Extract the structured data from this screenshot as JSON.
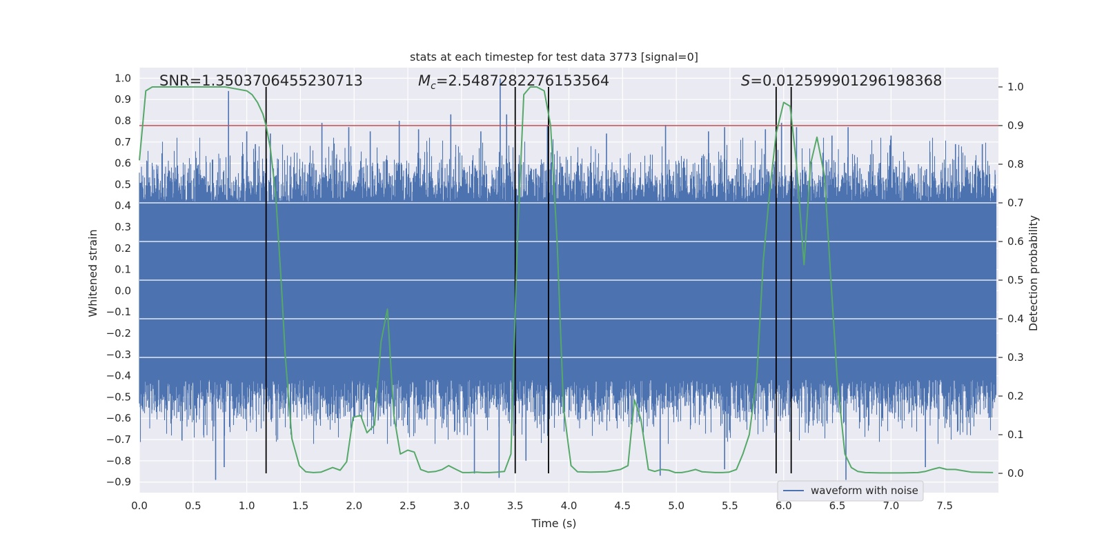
{
  "chart_data": {
    "type": "line",
    "title": "stats at each timestep for test data 3773 [signal=0]",
    "xlabel": "Time (s)",
    "ylabel_left": "Whitened strain",
    "ylabel_right": "Detection probability",
    "xlim": [
      0,
      8
    ],
    "ylim_left": [
      -0.95,
      1.05
    ],
    "ylim_right": [
      -0.05,
      1.05
    ],
    "x_ticks": [
      "0.0",
      "0.5",
      "1.0",
      "1.5",
      "2.0",
      "2.5",
      "3.0",
      "3.5",
      "4.0",
      "4.5",
      "5.0",
      "5.5",
      "6.0",
      "6.5",
      "7.0",
      "7.5"
    ],
    "y_left_ticks": [
      "−0.9",
      "−0.8",
      "−0.7",
      "−0.6",
      "−0.5",
      "−0.4",
      "−0.3",
      "−0.2",
      "−0.1",
      "0.0",
      "0.1",
      "0.2",
      "0.3",
      "0.4",
      "0.5",
      "0.6",
      "0.7",
      "0.8",
      "0.9",
      "1.0"
    ],
    "y_right_ticks": [
      "0.0",
      "0.1",
      "0.2",
      "0.3",
      "0.4",
      "0.5",
      "0.6",
      "0.7",
      "0.8",
      "0.9",
      "1.0"
    ],
    "grid": true,
    "legend": {
      "placement": "lower-right",
      "entries": [
        "waveform with noise"
      ]
    },
    "annotations": {
      "snr": "SNR=1.3503706455230713",
      "mc_symbol": "M",
      "mc_subscript": "c",
      "mc_value": "=2.5487282276153564",
      "s_symbol": "S",
      "s_value": "=0.012599901296198368"
    },
    "threshold": {
      "value": 0.9,
      "axis": "right",
      "color": "#c44e52"
    },
    "vertical_lines": [
      1.18,
      3.5,
      3.81,
      5.93,
      6.07
    ],
    "waveform": {
      "name": "waveform with noise",
      "color": "#4c72b0",
      "time_range": [
        0,
        7.98
      ],
      "envelope_upper": 0.42,
      "envelope_lower": -0.42,
      "spikes": [
        [
          0.83,
          0.94
        ],
        [
          0.71,
          -0.89
        ],
        [
          0.79,
          -0.83
        ],
        [
          1.0,
          0.75
        ],
        [
          1.08,
          0.69
        ],
        [
          1.22,
          0.74
        ],
        [
          1.7,
          0.79
        ],
        [
          1.95,
          0.77
        ],
        [
          2.15,
          0.75
        ],
        [
          2.42,
          0.8
        ],
        [
          2.6,
          0.76
        ],
        [
          2.9,
          0.83
        ],
        [
          3.18,
          0.75
        ],
        [
          3.36,
          1.0
        ],
        [
          3.42,
          0.83
        ],
        [
          3.35,
          -0.88
        ],
        [
          3.12,
          -0.86
        ],
        [
          3.8,
          0.78
        ],
        [
          4.35,
          0.74
        ],
        [
          4.9,
          0.78
        ],
        [
          5.3,
          0.75
        ],
        [
          5.45,
          0.77
        ],
        [
          5.83,
          0.76
        ],
        [
          5.98,
          0.79
        ],
        [
          6.12,
          0.77
        ],
        [
          6.45,
          0.73
        ],
        [
          6.6,
          0.77
        ],
        [
          6.58,
          -0.89
        ],
        [
          7.0,
          0.73
        ],
        [
          7.32,
          -0.83
        ],
        [
          7.6,
          0.69
        ],
        [
          7.85,
          0.69
        ],
        [
          4.85,
          -0.87
        ],
        [
          5.45,
          -0.84
        ],
        [
          3.6,
          -0.8
        ]
      ]
    },
    "detection_probability": {
      "color": "#55a868",
      "x": [
        0.0,
        0.03,
        0.06,
        0.12,
        0.2,
        0.4,
        0.6,
        0.8,
        0.9,
        1.0,
        1.05,
        1.1,
        1.15,
        1.18,
        1.22,
        1.27,
        1.32,
        1.36,
        1.42,
        1.49,
        1.55,
        1.62,
        1.69,
        1.8,
        1.87,
        1.93,
        1.99,
        2.06,
        2.12,
        2.19,
        2.25,
        2.31,
        2.37,
        2.43,
        2.5,
        2.56,
        2.62,
        2.69,
        2.76,
        2.82,
        2.88,
        2.95,
        3.01,
        3.07,
        3.14,
        3.2,
        3.26,
        3.33,
        3.4,
        3.46,
        3.52,
        3.58,
        3.64,
        3.7,
        3.77,
        3.83,
        3.89,
        3.95,
        4.02,
        4.08,
        4.2,
        4.35,
        4.48,
        4.55,
        4.61,
        4.67,
        4.74,
        4.8,
        4.86,
        4.93,
        4.99,
        5.05,
        5.11,
        5.18,
        5.24,
        5.36,
        5.43,
        5.49,
        5.56,
        5.62,
        5.68,
        5.75,
        5.81,
        5.87,
        5.93,
        6.0,
        6.06,
        6.12,
        6.19,
        6.25,
        6.31,
        6.38,
        6.44,
        6.5,
        6.57,
        6.63,
        6.69,
        6.76,
        6.9,
        7.1,
        7.25,
        7.32,
        7.38,
        7.45,
        7.52,
        7.6,
        7.75,
        7.95
      ],
      "y": [
        0.81,
        0.9,
        0.99,
        1.0,
        1.0,
        1.0,
        1.0,
        1.0,
        0.995,
        0.99,
        0.98,
        0.96,
        0.93,
        0.9,
        0.84,
        0.72,
        0.5,
        0.3,
        0.09,
        0.02,
        0.004,
        0.002,
        0.003,
        0.015,
        0.008,
        0.03,
        0.145,
        0.15,
        0.105,
        0.125,
        0.34,
        0.425,
        0.15,
        0.05,
        0.06,
        0.055,
        0.01,
        0.003,
        0.005,
        0.01,
        0.02,
        0.01,
        0.002,
        0.002,
        0.003,
        0.002,
        0.002,
        0.003,
        0.005,
        0.05,
        0.6,
        0.98,
        1.0,
        1.0,
        0.99,
        0.9,
        0.6,
        0.17,
        0.02,
        0.004,
        0.003,
        0.004,
        0.01,
        0.02,
        0.19,
        0.14,
        0.01,
        0.005,
        0.01,
        0.008,
        0.002,
        0.002,
        0.005,
        0.01,
        0.004,
        0.002,
        0.002,
        0.003,
        0.01,
        0.05,
        0.1,
        0.25,
        0.55,
        0.73,
        0.88,
        0.96,
        0.95,
        0.8,
        0.54,
        0.8,
        0.87,
        0.77,
        0.5,
        0.24,
        0.05,
        0.015,
        0.005,
        0.002,
        0.001,
        0.001,
        0.002,
        0.005,
        0.01,
        0.015,
        0.01,
        0.01,
        0.003,
        0.002
      ]
    }
  }
}
